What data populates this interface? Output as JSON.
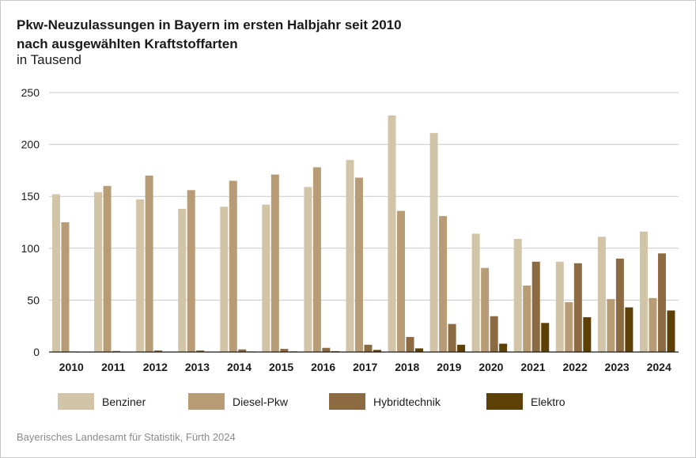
{
  "header": {
    "title_line1": "Pkw-Neuzulassungen in Bayern im ersten Halbjahr seit 2010",
    "title_line2": "nach ausgewählten Kraftstoffarten",
    "unit": "in Tausend"
  },
  "footer": {
    "source": "Bayerisches Landesamt für Statistik, Fürth 2024"
  },
  "chart_data": {
    "type": "bar",
    "title": "Pkw-Neuzulassungen in Bayern im ersten Halbjahr seit 2010",
    "subtitle": "nach ausgewählten Kraftstoffarten",
    "ylabel": "in Tausend",
    "xlabel": "",
    "ylim": [
      0,
      250
    ],
    "yticks": [
      0,
      50,
      100,
      150,
      200,
      250
    ],
    "grid": true,
    "legend_position": "bottom",
    "categories": [
      "2010",
      "2011",
      "2012",
      "2013",
      "2014",
      "2015",
      "2016",
      "2017",
      "2018",
      "2019",
      "2020",
      "2021",
      "2022",
      "2023",
      "2024"
    ],
    "series": [
      {
        "name": "Benziner",
        "color": "#d2c4a6",
        "values": [
          152,
          154,
          147,
          138,
          140,
          142,
          159,
          185,
          228,
          211,
          114,
          109,
          87,
          111,
          116
        ]
      },
      {
        "name": "Diesel-Pkw",
        "color": "#b89c76",
        "values": [
          125,
          160,
          170,
          156,
          165,
          171,
          178,
          168,
          136,
          131,
          81,
          64,
          48,
          51,
          52
        ]
      },
      {
        "name": "Hybridtechnik",
        "color": "#8c6a42",
        "values": [
          0.5,
          1,
          1.5,
          1.5,
          2.5,
          3,
          4,
          7,
          14.5,
          27,
          34.5,
          87,
          85.5,
          90,
          95
        ]
      },
      {
        "name": "Elektro",
        "color": "#5c4006",
        "values": [
          0,
          0.2,
          0.3,
          0.4,
          0.5,
          0.6,
          0.8,
          2,
          3.5,
          7,
          8,
          28,
          33.5,
          43,
          40
        ]
      }
    ]
  }
}
